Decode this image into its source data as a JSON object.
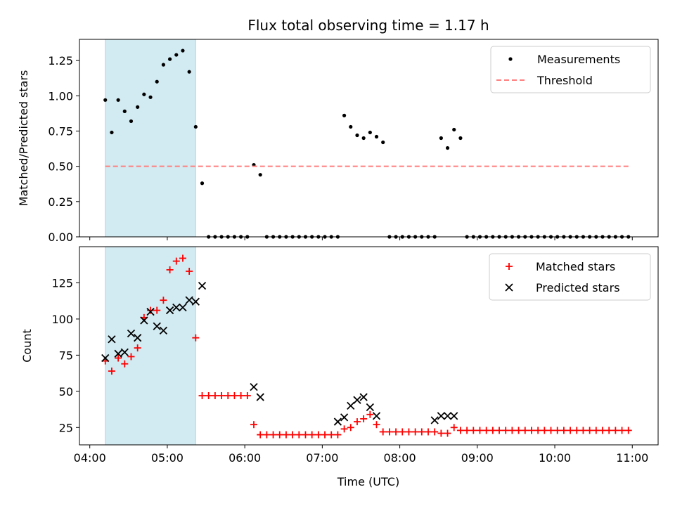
{
  "chart_data": {
    "title": "Flux total observing time = 1.17 h",
    "xlabel": "Time (UTC)",
    "x_ticks": [
      "04:00",
      "05:00",
      "06:00",
      "07:00",
      "08:00",
      "09:00",
      "10:00",
      "11:00"
    ],
    "xlim": [
      "03:52",
      "11:20"
    ],
    "shaded_interval": [
      "04:12",
      "05:22"
    ],
    "shade_color": "#add8e6",
    "panels": [
      {
        "type": "scatter",
        "ylabel": "Matched/Predicted stars",
        "ylim": [
          0,
          1.4
        ],
        "y_ticks": [
          0.0,
          0.25,
          0.5,
          0.75,
          1.0,
          1.25
        ],
        "legend_position": "top-right",
        "series": [
          {
            "name": "Measurements",
            "marker": "dot",
            "color": "#000000",
            "x": [
              "04:12",
              "04:17",
              "04:22",
              "04:27",
              "04:32",
              "04:37",
              "04:42",
              "04:47",
              "04:52",
              "04:57",
              "05:02",
              "05:07",
              "05:12",
              "05:17",
              "05:22",
              "05:27",
              "05:32",
              "05:37",
              "05:42",
              "05:47",
              "05:52",
              "05:57",
              "06:02",
              "06:07",
              "06:12",
              "06:17",
              "06:22",
              "06:27",
              "06:32",
              "06:37",
              "06:42",
              "06:47",
              "06:52",
              "06:57",
              "07:02",
              "07:07",
              "07:12",
              "07:17",
              "07:22",
              "07:27",
              "07:32",
              "07:37",
              "07:42",
              "07:47",
              "07:52",
              "07:57",
              "08:02",
              "08:07",
              "08:12",
              "08:17",
              "08:22",
              "08:27",
              "08:32",
              "08:37",
              "08:42",
              "08:47",
              "08:52",
              "08:57",
              "09:02",
              "09:07",
              "09:12",
              "09:17",
              "09:22",
              "09:27",
              "09:32",
              "09:37",
              "09:42",
              "09:47",
              "09:52",
              "09:57",
              "10:02",
              "10:07",
              "10:12",
              "10:17",
              "10:22",
              "10:27",
              "10:32",
              "10:37",
              "10:42",
              "10:47",
              "10:52",
              "10:57"
            ],
            "y": [
              0.97,
              0.74,
              0.97,
              0.89,
              0.82,
              0.92,
              1.01,
              0.99,
              1.1,
              1.22,
              1.26,
              1.29,
              1.32,
              1.17,
              0.78,
              0.38,
              0,
              0,
              0,
              0,
              0,
              0,
              0,
              0.51,
              0.44,
              0,
              0,
              0,
              0,
              0,
              0,
              0,
              0,
              0,
              0,
              0,
              0,
              0.86,
              0.78,
              0.72,
              0.7,
              0.74,
              0.71,
              0.67,
              0,
              0,
              0,
              0,
              0,
              0,
              0,
              0,
              0.7,
              0.63,
              0.76,
              0.7,
              0,
              0,
              0,
              0,
              0,
              0,
              0,
              0,
              0,
              0,
              0,
              0,
              0,
              0,
              0,
              0,
              0,
              0,
              0,
              0,
              0,
              0,
              0,
              0,
              0,
              0
            ]
          },
          {
            "name": "Threshold",
            "marker": "dashed-line",
            "color": "#ff7f7f",
            "x": [
              "04:12",
              "10:57"
            ],
            "y": [
              0.5,
              0.5
            ]
          }
        ]
      },
      {
        "type": "scatter",
        "ylabel": "Count",
        "ylim": [
          13,
          150
        ],
        "y_ticks": [
          25,
          50,
          75,
          100,
          125
        ],
        "legend_position": "top-right",
        "series": [
          {
            "name": "Matched stars",
            "marker": "plus",
            "color": "#ff0000",
            "x": [
              "04:12",
              "04:17",
              "04:22",
              "04:27",
              "04:32",
              "04:37",
              "04:42",
              "04:47",
              "04:52",
              "04:57",
              "05:02",
              "05:07",
              "05:12",
              "05:17",
              "05:22",
              "05:27",
              "05:32",
              "05:37",
              "05:42",
              "05:47",
              "05:52",
              "05:57",
              "06:02",
              "06:07",
              "06:12",
              "06:17",
              "06:22",
              "06:27",
              "06:32",
              "06:37",
              "06:42",
              "06:47",
              "06:52",
              "06:57",
              "07:02",
              "07:07",
              "07:12",
              "07:17",
              "07:22",
              "07:27",
              "07:32",
              "07:37",
              "07:42",
              "07:47",
              "07:52",
              "07:57",
              "08:02",
              "08:07",
              "08:12",
              "08:17",
              "08:22",
              "08:27",
              "08:32",
              "08:37",
              "08:42",
              "08:47",
              "08:52",
              "08:57",
              "09:02",
              "09:07",
              "09:12",
              "09:17",
              "09:22",
              "09:27",
              "09:32",
              "09:37",
              "09:42",
              "09:47",
              "09:52",
              "09:57",
              "10:02",
              "10:07",
              "10:12",
              "10:17",
              "10:22",
              "10:27",
              "10:32",
              "10:37",
              "10:42",
              "10:47",
              "10:52",
              "10:57"
            ],
            "y": [
              71,
              64,
              73,
              69,
              74,
              80,
              101,
              106,
              106,
              113,
              134,
              140,
              142,
              133,
              87,
              47,
              47,
              47,
              47,
              47,
              47,
              47,
              47,
              27,
              20,
              20,
              20,
              20,
              20,
              20,
              20,
              20,
              20,
              20,
              20,
              20,
              20,
              24,
              25,
              29,
              31,
              34,
              27,
              22,
              22,
              22,
              22,
              22,
              22,
              22,
              22,
              22,
              21,
              21,
              25,
              23,
              23,
              23,
              23,
              23,
              23,
              23,
              23,
              23,
              23,
              23,
              23,
              23,
              23,
              23,
              23,
              23,
              23,
              23,
              23,
              23,
              23,
              23,
              23,
              23,
              23,
              23
            ]
          },
          {
            "name": "Predicted stars",
            "marker": "x",
            "color": "#000000",
            "x": [
              "04:12",
              "04:17",
              "04:22",
              "04:27",
              "04:32",
              "04:37",
              "04:42",
              "04:47",
              "04:52",
              "04:57",
              "05:02",
              "05:07",
              "05:12",
              "05:17",
              "05:22",
              "05:27",
              "06:07",
              "06:12",
              "07:12",
              "07:17",
              "07:22",
              "07:27",
              "07:32",
              "07:37",
              "07:42",
              "08:27",
              "08:32",
              "08:37",
              "08:42"
            ],
            "y": [
              73,
              86,
              76,
              77,
              90,
              87,
              99,
              105,
              95,
              92,
              106,
              108,
              108,
              113,
              112,
              123,
              53,
              46,
              29,
              32,
              40,
              44,
              46,
              39,
              33,
              30,
              33,
              33,
              33
            ]
          }
        ]
      }
    ]
  }
}
